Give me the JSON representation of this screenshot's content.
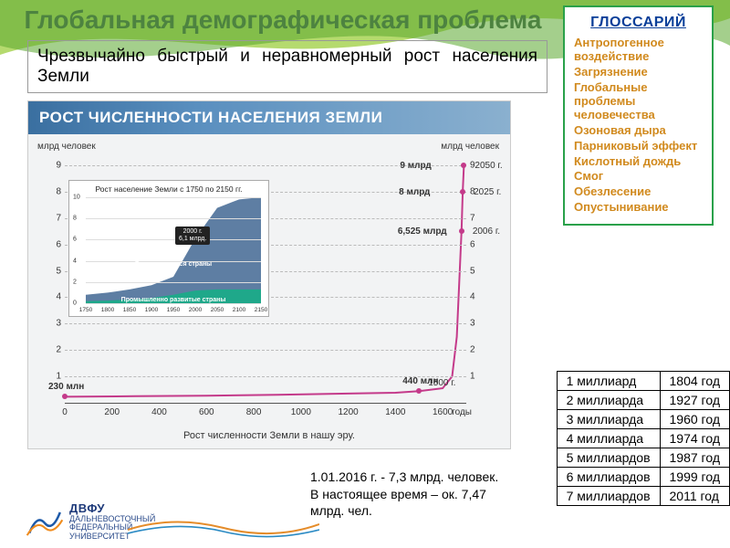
{
  "title": "Глобальная демографическая проблема",
  "subtitle": "Чрезвычайно быстрый и неравномерный рост населения Земли",
  "glossary": {
    "heading": "ГЛОССАРИЙ",
    "items": [
      "Антропогенное воздействие",
      "Загрязнение",
      "Глобальные проблемы человечества",
      "Озоновая дыра",
      "Парниковый эффект",
      "Кислотный дождь",
      "Смог",
      "Обезлесение",
      "Опустынивание"
    ]
  },
  "chart": {
    "header": "РОСТ ЧИСЛЕННОСТИ НАСЕЛЕНИЯ ЗЕМЛИ",
    "caption": "Рост численности Земли в нашу эру.",
    "y_label_left": "млрд\nчеловек",
    "y_label_right": "млрд\nчеловек",
    "x_label": "годы",
    "ylim": [
      0,
      9
    ],
    "yticks": [
      1,
      2,
      3,
      4,
      5,
      6,
      7,
      8,
      9
    ],
    "xlim": [
      0,
      1700
    ],
    "xticks": [
      0,
      200,
      400,
      600,
      800,
      1000,
      1200,
      1400,
      1600
    ],
    "line_color": "#c43a8a",
    "line_width": 2,
    "points": [
      {
        "x": 0,
        "y": 0.23,
        "value": "230 млн",
        "year": ""
      },
      {
        "x": 1500,
        "y": 0.44,
        "value": "440 млн",
        "year": "1500 г."
      },
      {
        "x": 1680,
        "y": 6.525,
        "value": "6,525 млрд",
        "year": "2006 г."
      },
      {
        "x": 1685,
        "y": 8.0,
        "value": "8 млрд",
        "year": "2025 г."
      },
      {
        "x": 1690,
        "y": 9.0,
        "value": "9 млрд",
        "year": "2050 г."
      }
    ],
    "curve_data": [
      [
        0,
        0.23
      ],
      [
        300,
        0.25
      ],
      [
        600,
        0.27
      ],
      [
        900,
        0.3
      ],
      [
        1200,
        0.35
      ],
      [
        1400,
        0.38
      ],
      [
        1500,
        0.44
      ],
      [
        1600,
        0.55
      ],
      [
        1640,
        1.0
      ],
      [
        1660,
        2.5
      ],
      [
        1670,
        4.5
      ],
      [
        1680,
        6.525
      ],
      [
        1685,
        8.0
      ],
      [
        1690,
        9.0
      ]
    ],
    "background": "#f2f3f4"
  },
  "inset": {
    "title": "Рост население Земли с 1750 по 2150 гг.",
    "ylim": [
      0,
      10
    ],
    "yticks": [
      0,
      2,
      4,
      6,
      8,
      10
    ],
    "xlim": [
      1750,
      2150
    ],
    "xticks": [
      1750,
      1800,
      1850,
      1900,
      1950,
      2000,
      2050,
      2100,
      2150
    ],
    "area1_color": "#5e7ea3",
    "area2_color": "#1fa88a",
    "legend1": "Развивающиеся страны",
    "legend2": "Промышленно развитые страны",
    "callout": {
      "label1": "2000 г.",
      "label2": "6,1 млрд.",
      "x": 2000
    }
  },
  "note2016": "1.01.2016 г. - 7,3 млрд. человек.\nВ настоящее время – ок. 7,47 млрд. чел.",
  "year_table": {
    "rows": [
      [
        "1 миллиард",
        "1804 год"
      ],
      [
        "2 миллиарда",
        "1927 год"
      ],
      [
        "3 миллиарда",
        "1960 год"
      ],
      [
        "4 миллиарда",
        "1974 год"
      ],
      [
        "5 миллиардов",
        "1987 год"
      ],
      [
        "6 миллиардов",
        "1999 год"
      ],
      [
        "7 миллиардов",
        "2011 год"
      ]
    ]
  },
  "logo": {
    "acronym": "ДВФУ",
    "line1": "ДАЛЬНЕВОСТОЧНЫЙ",
    "line2": "ФЕДЕРАЛЬНЫЙ",
    "line3": "УНИВЕРСИТЕТ"
  },
  "colors": {
    "title": "#4d8340",
    "glossary_border": "#2aa14a",
    "glossary_item": "#d18a1e",
    "glossary_head": "#0a3f99"
  }
}
